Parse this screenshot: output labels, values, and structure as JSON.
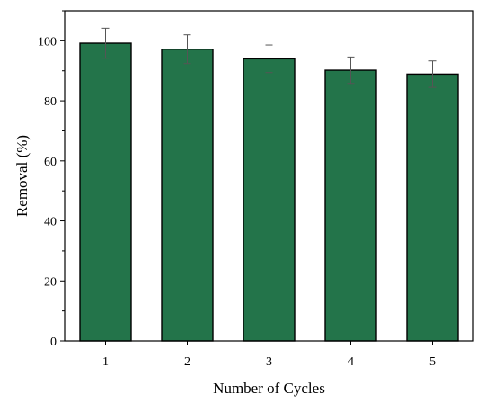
{
  "chart_data": {
    "type": "bar",
    "title": "",
    "xlabel": "Number of Cycles",
    "ylabel": "Removal (%)",
    "categories": [
      "1",
      "2",
      "3",
      "4",
      "5"
    ],
    "values": [
      99.2,
      97.2,
      94.0,
      90.2,
      88.9
    ],
    "errors": [
      5.0,
      4.8,
      4.6,
      4.4,
      4.4
    ],
    "ylim": [
      0,
      110
    ],
    "yticks": [
      0,
      20,
      40,
      60,
      80,
      100
    ],
    "yticks_minor": [
      10,
      30,
      50,
      70,
      90,
      110
    ],
    "grid": false,
    "legend": "none",
    "bar_color": "#23744a",
    "bar_edge_color": "#000000",
    "errorbar_color": "#555555"
  }
}
